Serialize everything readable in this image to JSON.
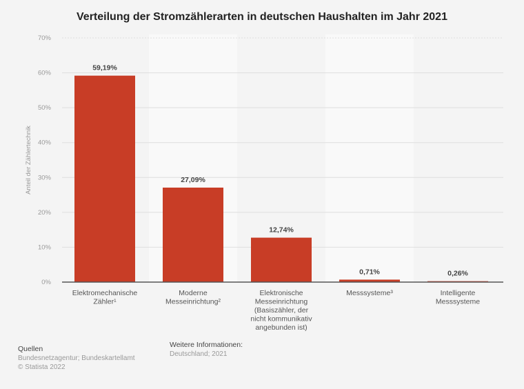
{
  "chart_data": {
    "type": "bar",
    "title": "Verteilung der Stromzählerarten in deutschen Haushalten im Jahr 2021",
    "xlabel": "",
    "ylabel": "Anteil der Zählertechnik",
    "ylim": [
      0,
      70
    ],
    "yticks": [
      0,
      10,
      20,
      30,
      40,
      50,
      60,
      70
    ],
    "ytick_labels": [
      "0%",
      "10%",
      "20%",
      "30%",
      "40%",
      "50%",
      "60%",
      "70%"
    ],
    "categories": [
      [
        "Elektromechanische",
        "Zähler¹"
      ],
      [
        "Moderne",
        "Messeinrichtung²"
      ],
      [
        "Elektronische",
        "Messeinrichtung",
        "(Basiszähler, der",
        "nicht kommunikativ",
        "angebunden ist)"
      ],
      [
        "Messsysteme³"
      ],
      [
        "Intelligente",
        "Messsysteme"
      ]
    ],
    "values": [
      59.19,
      27.09,
      12.74,
      0.71,
      0.26
    ],
    "value_labels": [
      "59,19%",
      "27,09%",
      "12,74%",
      "0,71%",
      "0,26%"
    ],
    "bar_color": "#c83d26",
    "grid": true,
    "legend": "none"
  },
  "footer": {
    "sources_heading": "Quellen",
    "sources": "Bundesnetzagentur; Bundeskartellamt",
    "copyright": "© Statista 2022",
    "info_heading": "Weitere Informationen:",
    "info": "Deutschland; 2021"
  }
}
